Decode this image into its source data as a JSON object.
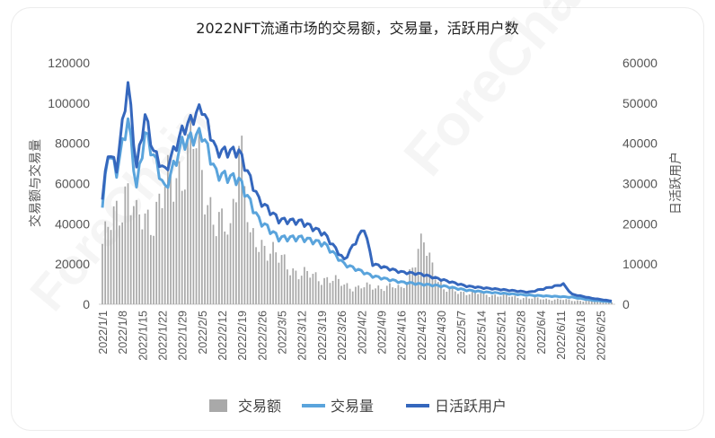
{
  "chart_data": {
    "type": "bar+line",
    "title": "2022NFT流通市场的交易额，交易量，活跃用户数",
    "ylabel_left": "交易额与交易量",
    "ylabel_right": "日活跃用户",
    "ylim_left": [
      0,
      120000
    ],
    "ylim_right": [
      0,
      60000
    ],
    "yticks_left": [
      "0",
      "20000",
      "40000",
      "60000",
      "80000",
      "100000",
      "120000"
    ],
    "yticks_right": [
      "0",
      "10000",
      "20000",
      "30000",
      "40000",
      "50000",
      "60000"
    ],
    "xticks": [
      "2022/1/1",
      "2022/1/8",
      "2022/1/15",
      "2022/1/22",
      "2022/1/29",
      "2022/2/5",
      "2022/2/12",
      "2022/2/19",
      "2022/2/26",
      "2022/3/5",
      "2022/3/12",
      "2022/3/19",
      "2022/3/26",
      "2022/4/2",
      "2022/4/9",
      "2022/4/16",
      "2022/4/23",
      "2022/4/30",
      "2022/5/7",
      "2022/5/14",
      "2022/5/21",
      "2022/5/28",
      "2022/6/4",
      "2022/6/11",
      "2022/6/18",
      "2022/6/25"
    ],
    "legend": [
      "交易额",
      "交易量",
      "日活跃用户"
    ],
    "colors": {
      "bars": "#a9a9a9",
      "volume": "#5aa4dc",
      "users": "#3567bd"
    },
    "legend_position": "bottom",
    "grid": false,
    "series_keypoints": {
      "volume_left_axis": [
        [
          0,
          48000
        ],
        [
          2,
          76000
        ],
        [
          5,
          66000
        ],
        [
          9,
          92000
        ],
        [
          12,
          58000
        ],
        [
          15,
          85000
        ],
        [
          18,
          74000
        ],
        [
          22,
          57000
        ],
        [
          28,
          80000
        ],
        [
          35,
          85000
        ],
        [
          40,
          65000
        ],
        [
          48,
          62000
        ],
        [
          55,
          42000
        ],
        [
          62,
          33000
        ],
        [
          70,
          33000
        ],
        [
          78,
          30000
        ],
        [
          85,
          20000
        ],
        [
          95,
          14000
        ],
        [
          105,
          11000
        ],
        [
          112,
          10000
        ],
        [
          120,
          9000
        ],
        [
          128,
          7000
        ],
        [
          135,
          6000
        ],
        [
          150,
          4500
        ],
        [
          165,
          3500
        ],
        [
          172,
          2000
        ],
        [
          179,
          1200
        ]
      ],
      "users_right_axis": [
        [
          0,
          26000
        ],
        [
          2,
          38000
        ],
        [
          5,
          34000
        ],
        [
          9,
          55000
        ],
        [
          12,
          34000
        ],
        [
          15,
          47000
        ],
        [
          18,
          38000
        ],
        [
          22,
          33000
        ],
        [
          28,
          43000
        ],
        [
          35,
          49000
        ],
        [
          40,
          38000
        ],
        [
          48,
          38000
        ],
        [
          55,
          26000
        ],
        [
          62,
          21000
        ],
        [
          70,
          20500
        ],
        [
          78,
          17500
        ],
        [
          85,
          11000
        ],
        [
          92,
          19000
        ],
        [
          95,
          10000
        ],
        [
          105,
          8000
        ],
        [
          112,
          7500
        ],
        [
          120,
          6000
        ],
        [
          128,
          4500
        ],
        [
          135,
          4000
        ],
        [
          150,
          3000
        ],
        [
          162,
          5000
        ],
        [
          165,
          2500
        ],
        [
          172,
          1500
        ],
        [
          179,
          800
        ]
      ],
      "bars_left_axis": [
        [
          0,
          30000
        ],
        [
          5,
          45000
        ],
        [
          9,
          60000
        ],
        [
          12,
          40000
        ],
        [
          18,
          45000
        ],
        [
          28,
          70000
        ],
        [
          32,
          80000
        ],
        [
          40,
          40000
        ],
        [
          45,
          35000
        ],
        [
          48,
          90000
        ],
        [
          52,
          30000
        ],
        [
          58,
          30000
        ],
        [
          62,
          22000
        ],
        [
          70,
          15000
        ],
        [
          78,
          13000
        ],
        [
          85,
          10000
        ],
        [
          90,
          8000
        ],
        [
          95,
          9000
        ],
        [
          105,
          8000
        ],
        [
          113,
          30000
        ],
        [
          120,
          7000
        ],
        [
          135,
          5000
        ],
        [
          150,
          3000
        ],
        [
          165,
          2000
        ],
        [
          179,
          1000
        ]
      ]
    }
  }
}
